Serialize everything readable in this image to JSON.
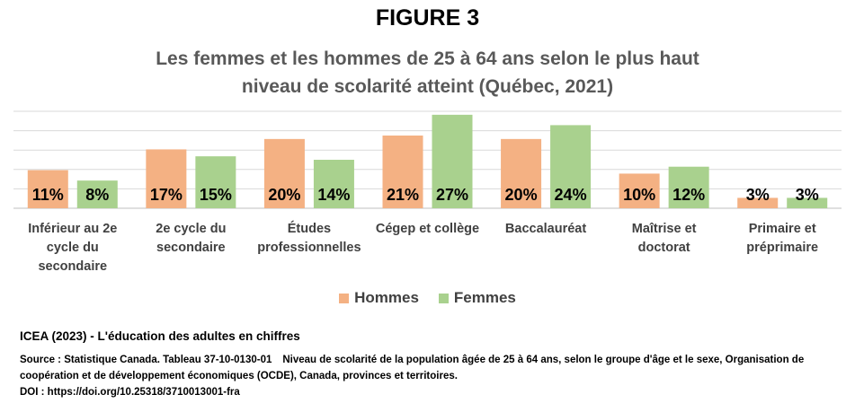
{
  "figure_label": "FIGURE 3",
  "title_line1": "Les femmes et les hommes de 25 à 64 ans selon le plus haut",
  "title_line2": "niveau de scolarité atteint (Québec, 2021)",
  "chart_data": {
    "type": "bar",
    "title": "Les femmes et les hommes de 25 à 64 ans selon le plus haut niveau de scolarité atteint (Québec, 2021)",
    "categories": [
      [
        "Inférieur au 2e",
        "cycle du",
        "secondaire"
      ],
      [
        "2e cycle du",
        "secondaire"
      ],
      [
        "Études",
        "professionnelles"
      ],
      [
        "Cégep et collège"
      ],
      [
        "Baccalauréat"
      ],
      [
        "Maîtrise et",
        "doctorat"
      ],
      [
        "Primaire et",
        "préprimaire"
      ]
    ],
    "series": [
      {
        "name": "Hommes",
        "color": "#F4B183",
        "values": [
          11,
          17,
          20,
          21,
          20,
          10,
          3
        ]
      },
      {
        "name": "Femmes",
        "color": "#A9D18E",
        "values": [
          8,
          15,
          14,
          27,
          24,
          12,
          3
        ]
      }
    ],
    "value_suffix": "%",
    "ylim": [
      0,
      28
    ],
    "grid": true,
    "legend_position": "bottom"
  },
  "credit": "ICEA (2023) - L'éducation des adultes en chiffres",
  "source_part1": "Source : Statistique Canada. Tableau 37-10-0130-01",
  "source_part2": "Niveau de scolarité de la population âgée de 25 à 64 ans, selon le groupe d'âge et le sexe, Organisation de coopération et de développement économiques (OCDE), Canada, provinces et territoires.",
  "doi": "DOI : https://doi.org/10.25318/3710013001-fra"
}
